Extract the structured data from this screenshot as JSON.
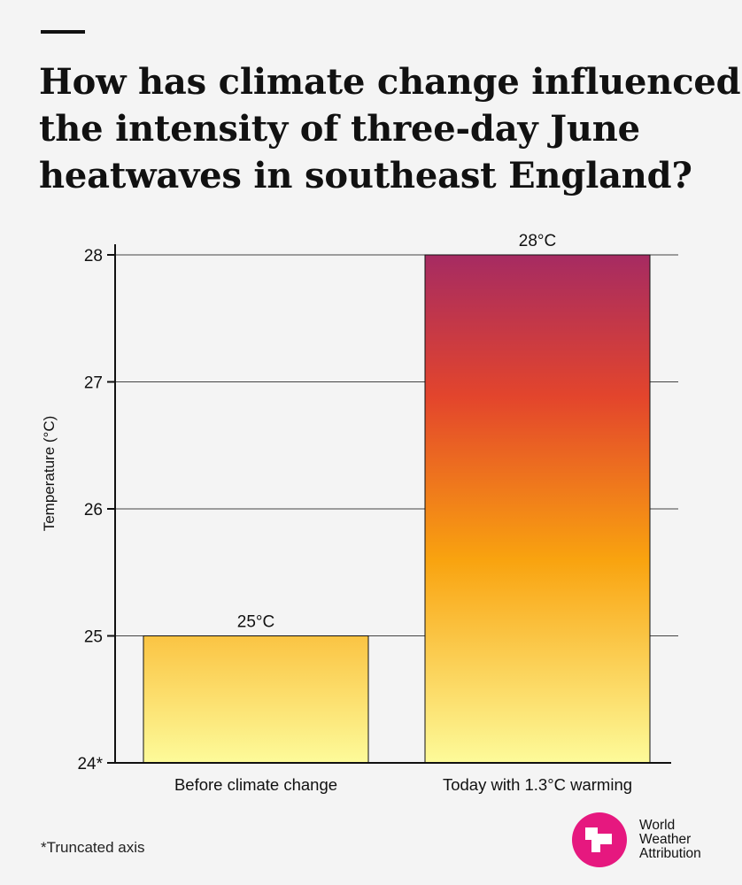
{
  "header": {
    "title_lines": [
      "How has climate change influenced",
      "the intensity of three-day June",
      "heatwaves in southeast England?"
    ]
  },
  "chart_data": {
    "type": "bar",
    "categories": [
      "Before climate change",
      "Today with 1.3°C warming"
    ],
    "values": [
      25,
      28
    ],
    "data_labels": [
      "25°C",
      "28°C"
    ],
    "ylabel": "Temperature (°C)",
    "ylim": [
      24,
      28
    ],
    "yticks": [
      24,
      25,
      26,
      27,
      28
    ],
    "ytick_labels": [
      "24*",
      "25",
      "26",
      "27",
      "28"
    ],
    "grid": true,
    "gradient_colors": [
      "#fdfb9a",
      "#f9a30f",
      "#e3452c",
      "#a62b62"
    ]
  },
  "footnote": "*Truncated axis",
  "logo": {
    "lines": [
      "World",
      "Weather",
      "Attribution"
    ],
    "color": "#e6187f"
  }
}
